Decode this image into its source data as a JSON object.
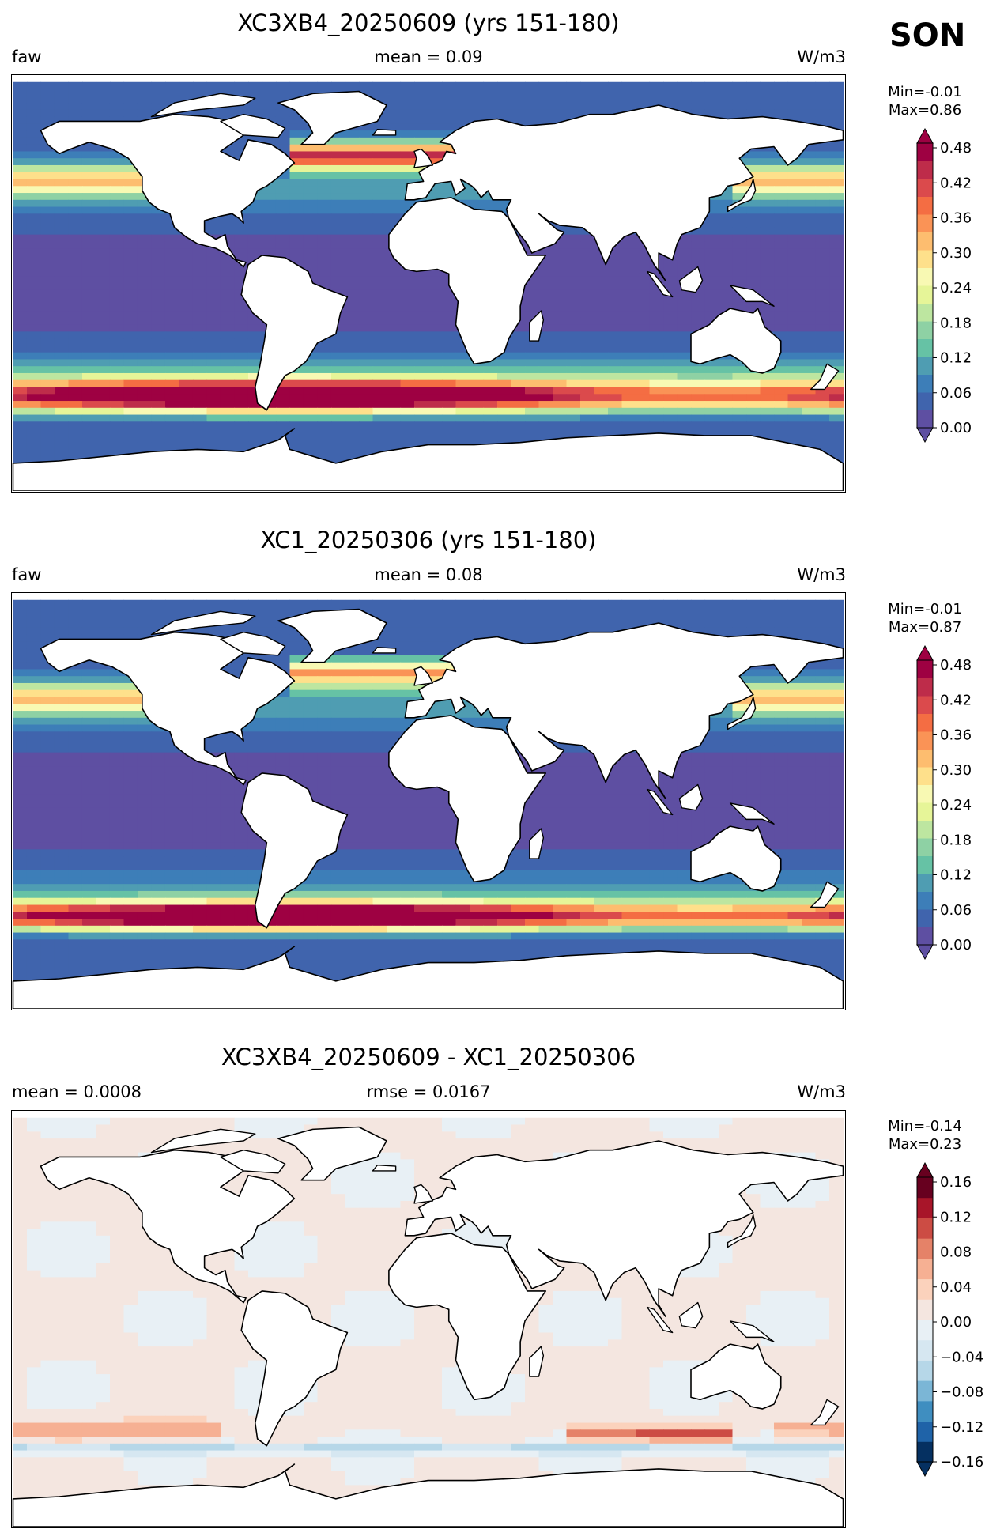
{
  "season": "SON",
  "panels": [
    {
      "title": "XC3XB4_20250609 (yrs 151-180)",
      "left_label": "faw",
      "center_label": "mean = 0.09",
      "right_label": "W/m3",
      "min_text": "Min=-0.01",
      "max_text": "Max=0.86",
      "colormap": "Spectral_r"
    },
    {
      "title": "XC1_20250306 (yrs 151-180)",
      "left_label": "faw",
      "center_label": "mean = 0.08",
      "right_label": "W/m3",
      "min_text": "Min=-0.01",
      "max_text": "Max=0.87",
      "colormap": "Spectral_r"
    },
    {
      "title": "XC3XB4_20250609 - XC1_20250306",
      "left_label": "mean = 0.0008",
      "center_label": "rmse = 0.0167",
      "right_label": "W/m3",
      "min_text": "Min=-0.14",
      "max_text": "Max=0.23",
      "colormap": "RdBu_r"
    }
  ],
  "chart_data": [
    {
      "type": "heatmap",
      "title": "XC3XB4_20250609 (yrs 151-180)",
      "variable": "faw",
      "units": "W/m3",
      "mean": 0.09,
      "min": -0.01,
      "max": 0.86,
      "colorbar_range": [
        0.0,
        0.48
      ],
      "colorbar_ticks": [
        "0.48",
        "0.42",
        "0.36",
        "0.30",
        "0.24",
        "0.18",
        "0.12",
        "0.06",
        "0.00"
      ],
      "colorbar_colors": [
        "#5e4fa2",
        "#4064ad",
        "#3d7eb8",
        "#4f9db2",
        "#66c2a5",
        "#8ed1a4",
        "#bde6a0",
        "#e6f598",
        "#f8f9b3",
        "#fee08b",
        "#fdbd6f",
        "#fa9356",
        "#f46d43",
        "#db4a4c",
        "#be2c4a",
        "#9e0142"
      ],
      "features": "highest values in Southern Ocean storm track band near 50S (>0.48), elevated in North Atlantic and North Pacific (0.2-0.4), low values 0.02-0.08 in tropics"
    },
    {
      "type": "heatmap",
      "title": "XC1_20250306 (yrs 151-180)",
      "variable": "faw",
      "units": "W/m3",
      "mean": 0.08,
      "min": -0.01,
      "max": 0.87,
      "colorbar_range": [
        0.0,
        0.48
      ],
      "colorbar_ticks": [
        "0.48",
        "0.42",
        "0.36",
        "0.30",
        "0.24",
        "0.18",
        "0.12",
        "0.06",
        "0.00"
      ],
      "colorbar_colors": [
        "#5e4fa2",
        "#4064ad",
        "#3d7eb8",
        "#4f9db2",
        "#66c2a5",
        "#8ed1a4",
        "#bde6a0",
        "#e6f598",
        "#f8f9b3",
        "#fee08b",
        "#fdbd6f",
        "#fa9356",
        "#f46d43",
        "#db4a4c",
        "#be2c4a",
        "#9e0142"
      ],
      "features": "Southern Ocean maximum band near 50S, narrower than first panel; North Atlantic and North Pacific moderate"
    },
    {
      "type": "heatmap",
      "title": "XC3XB4_20250609 - XC1_20250306",
      "units": "W/m3",
      "mean": 0.0008,
      "rmse": 0.0167,
      "min": -0.14,
      "max": 0.23,
      "colorbar_range": [
        -0.16,
        0.16
      ],
      "colorbar_ticks": [
        "0.16",
        "0.12",
        "0.08",
        "0.04",
        "0.00",
        "−0.04",
        "−0.08",
        "−0.12",
        "−0.16"
      ],
      "colorbar_colors": [
        "#053061",
        "#1f63a8",
        "#3f8ec0",
        "#7bb6d6",
        "#b6d7e8",
        "#d6e7f1",
        "#e8f0f5",
        "#f4e6e0",
        "#fbd2bc",
        "#f6b093",
        "#e58268",
        "#cc4c44",
        "#a81529",
        "#67001f"
      ],
      "features": "mostly near zero; positive differences (red) in South Pacific near 50S and South Indian Ocean; negative (blue) strip along 55-60S"
    }
  ]
}
